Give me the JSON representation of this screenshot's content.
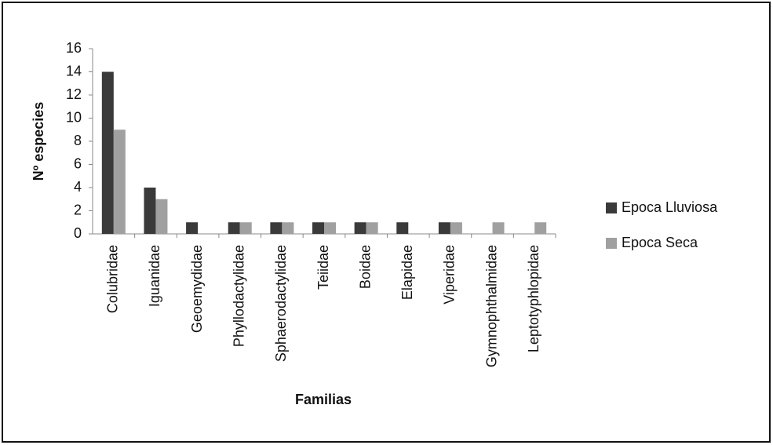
{
  "chart_data": {
    "type": "bar",
    "x_label": "Familias",
    "y_label": "Nº especies",
    "categories": [
      "Colubridae",
      "Iguanidae",
      "Geoemydidae",
      "Phyllodactylidae",
      "Sphaerodactylidae",
      "Teiidae",
      "Boidae",
      "Elapidae",
      "Viperidae",
      "Gymnophthalmidae",
      "Leptotyphlopidae"
    ],
    "series": [
      {
        "name": "Epoca Lluviosa",
        "color": "#3a3a3a",
        "values": [
          14,
          4,
          1,
          1,
          1,
          1,
          1,
          1,
          1,
          0,
          0
        ]
      },
      {
        "name": "Epoca Seca",
        "color": "#a0a0a0",
        "values": [
          9,
          3,
          0,
          1,
          1,
          1,
          1,
          0,
          1,
          1,
          1
        ]
      }
    ],
    "ylim": [
      0,
      16
    ],
    "yticks": [
      0,
      2,
      4,
      6,
      8,
      10,
      12,
      14,
      16
    ],
    "grid": false,
    "legend": "right"
  }
}
